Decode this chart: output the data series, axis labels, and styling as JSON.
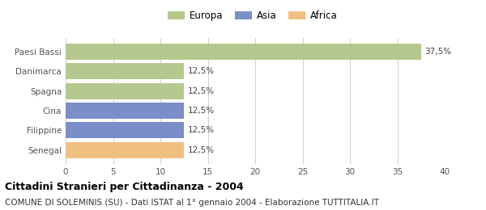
{
  "categories": [
    "Paesi Bassi",
    "Danimarca",
    "Spagna",
    "Cina",
    "Filippine",
    "Senegal"
  ],
  "values": [
    37.5,
    12.5,
    12.5,
    12.5,
    12.5,
    12.5
  ],
  "bar_colors": [
    "#b5c98e",
    "#b5c98e",
    "#b5c98e",
    "#7b8ec8",
    "#7b8ec8",
    "#f0c080"
  ],
  "value_labels": [
    "37,5%",
    "12,5%",
    "12,5%",
    "12,5%",
    "12,5%",
    "12,5%"
  ],
  "legend_labels": [
    "Europa",
    "Asia",
    "Africa"
  ],
  "legend_colors": [
    "#b5c98e",
    "#7b8ec8",
    "#f0c080"
  ],
  "xlim": [
    0,
    40
  ],
  "xticks": [
    0,
    5,
    10,
    15,
    20,
    25,
    30,
    35,
    40
  ],
  "title": "Cittadini Stranieri per Cittadinanza - 2004",
  "subtitle": "COMUNE DI SOLEMINIS (SU) - Dati ISTAT al 1° gennaio 2004 - Elaborazione TUTTITALIA.IT",
  "background_color": "#ffffff",
  "grid_color": "#d0d0d0",
  "bar_height": 0.82,
  "title_fontsize": 9,
  "subtitle_fontsize": 7.5,
  "label_fontsize": 7.5,
  "tick_fontsize": 7.5,
  "legend_fontsize": 8.5
}
